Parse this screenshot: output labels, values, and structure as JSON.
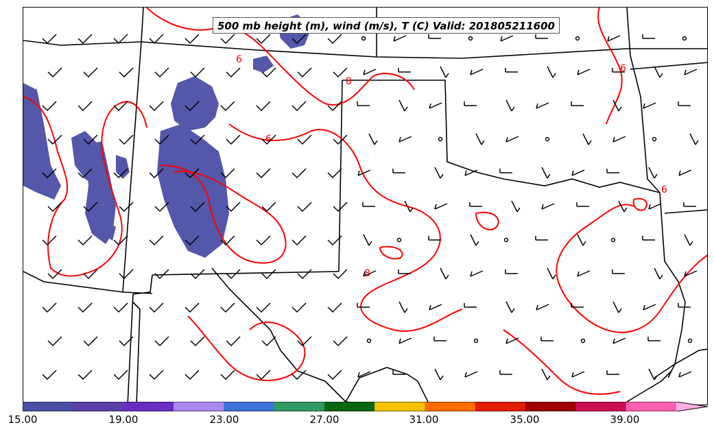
{
  "title": "500 mb height (m), wind (m/s), T (C) Valid: 201805211600",
  "contour_labels": [
    "6",
    "6",
    "6",
    "6",
    "8",
    "8"
  ],
  "colorbar": {
    "ticks": [
      "15.00",
      "19.00",
      "23.00",
      "27.00",
      "31.00",
      "35.00",
      "39.00"
    ],
    "colors": [
      "#4b4fa6",
      "#5a3fa8",
      "#6b2cc3",
      "#aa88f0",
      "#3d72d8",
      "#2f9a63",
      "#0a6612",
      "#f2c200",
      "#ff6d00",
      "#e21d00",
      "#9e0000",
      "#cc0f55",
      "#ff5fb1"
    ],
    "min_value": 15,
    "max_value": 42,
    "extend": "max"
  },
  "style": {
    "temperature_contour_color": "#ff0000",
    "wind_barb_color": "#000000",
    "shading_color": "#4b4fa6"
  }
}
